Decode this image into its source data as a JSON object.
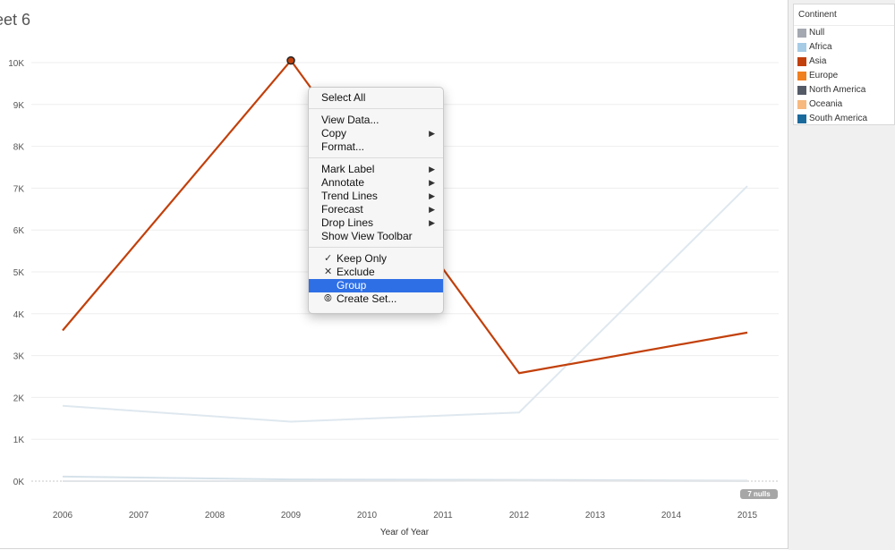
{
  "sheet": {
    "title": "eet 6"
  },
  "chart_data": {
    "type": "line",
    "xlabel": "Year of Year",
    "ylabel": "",
    "x": [
      2006,
      2007,
      2008,
      2009,
      2010,
      2011,
      2012,
      2013,
      2014,
      2015
    ],
    "x_tick_labels": [
      "2006",
      "2007",
      "2008",
      "2009",
      "2010",
      "2011",
      "2012",
      "2013",
      "2014",
      "2015"
    ],
    "y_tick_labels": [
      "0K",
      "1K",
      "2K",
      "3K",
      "4K",
      "5K",
      "6K",
      "7K",
      "8K",
      "9K",
      "10K"
    ],
    "ylim": [
      0,
      10800
    ],
    "grid": true,
    "legend_position": "right",
    "selected_point": {
      "series": "Asia",
      "x": 2009,
      "y": 10050
    },
    "series": [
      {
        "name": "Asia",
        "color": "#c2400b",
        "dimmed": false,
        "points": [
          [
            2006,
            3600
          ],
          [
            2009,
            10050
          ],
          [
            2012,
            2580
          ],
          [
            2015,
            3550
          ]
        ]
      },
      {
        "name": "Africa",
        "color": "#dfe8ef",
        "dimmed": true,
        "points": [
          [
            2006,
            1800
          ],
          [
            2009,
            1420
          ],
          [
            2012,
            1640
          ],
          [
            2015,
            7050
          ]
        ]
      },
      {
        "name": "South America",
        "color": "#d6e2ea",
        "dimmed": true,
        "points": [
          [
            2006,
            110
          ],
          [
            2009,
            40
          ],
          [
            2012,
            30
          ],
          [
            2015,
            10
          ]
        ]
      },
      {
        "name": "North America",
        "color": "#e2e5e8",
        "dimmed": true,
        "points": [
          [
            2006,
            0
          ],
          [
            2009,
            0
          ],
          [
            2012,
            10
          ],
          [
            2015,
            0
          ]
        ]
      }
    ],
    "null_count_label": "7 nulls"
  },
  "legend": {
    "title": "Continent",
    "items": [
      {
        "label": "Null",
        "color": "#a4a8b0"
      },
      {
        "label": "Africa",
        "color": "#a6cbe5"
      },
      {
        "label": "Asia",
        "color": "#c2400b"
      },
      {
        "label": "Europe",
        "color": "#f07f1e"
      },
      {
        "label": "North America",
        "color": "#545a66"
      },
      {
        "label": "Oceania",
        "color": "#f7b97e"
      },
      {
        "label": "South America",
        "color": "#1b6a9c"
      }
    ]
  },
  "context_menu": {
    "groups": [
      [
        {
          "label": "Select All"
        }
      ],
      [
        {
          "label": "View Data..."
        },
        {
          "label": "Copy",
          "submenu": true
        },
        {
          "label": "Format..."
        }
      ],
      [
        {
          "label": "Mark Label",
          "submenu": true
        },
        {
          "label": "Annotate",
          "submenu": true
        },
        {
          "label": "Trend Lines",
          "submenu": true
        },
        {
          "label": "Forecast",
          "submenu": true
        },
        {
          "label": "Drop Lines",
          "submenu": true
        },
        {
          "label": "Show View Toolbar"
        }
      ],
      [
        {
          "label": "Keep Only",
          "icon": "check-icon"
        },
        {
          "label": "Exclude",
          "icon": "x-icon"
        },
        {
          "label": "Group",
          "icon": "group-icon",
          "highlighted": true
        },
        {
          "label": "Create Set...",
          "icon": "set-icon"
        }
      ]
    ]
  }
}
